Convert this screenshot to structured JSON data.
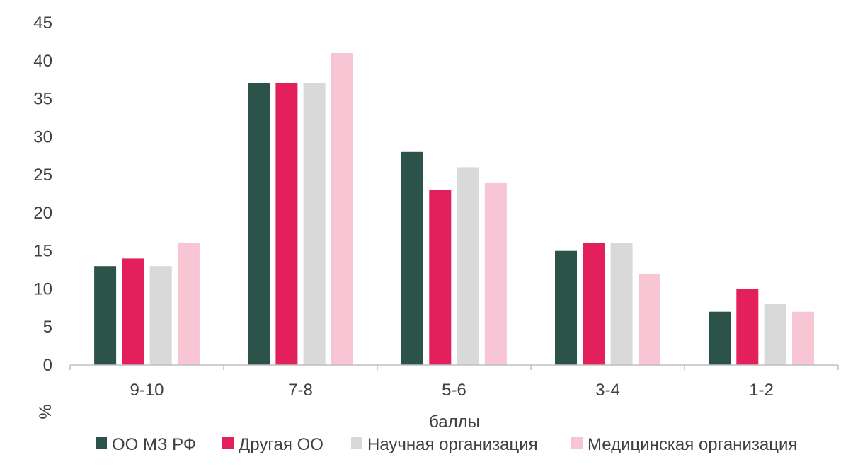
{
  "chart_data": {
    "type": "bar",
    "categories": [
      "9-10",
      "7-8",
      "5-6",
      "3-4",
      "1-2"
    ],
    "series": [
      {
        "name": "ОО МЗ РФ",
        "values": [
          13,
          37,
          28,
          15,
          7
        ],
        "color": "#2b5349"
      },
      {
        "name": "Другая ОО",
        "values": [
          14,
          37,
          23,
          16,
          10
        ],
        "color": "#e3205c"
      },
      {
        "name": "Научная организация",
        "values": [
          13,
          37,
          26,
          16,
          8
        ],
        "color": "#d9d9d9"
      },
      {
        "name": "Медицинская организация",
        "values": [
          16,
          41,
          24,
          12,
          7
        ],
        "color": "#f7c5d4"
      }
    ],
    "title": "",
    "xlabel": "баллы",
    "ylabel": "%",
    "ylim": [
      0,
      45
    ],
    "yticks": [
      0,
      5,
      10,
      15,
      20,
      25,
      30,
      35,
      40,
      45
    ],
    "grid": false,
    "legend_position": "bottom"
  }
}
